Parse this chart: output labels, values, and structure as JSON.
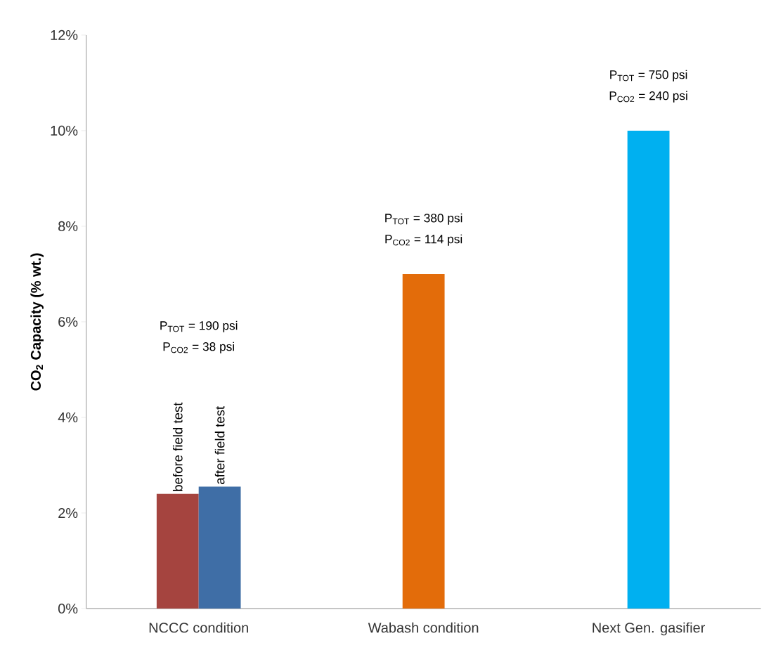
{
  "chart_data": {
    "type": "bar",
    "ylabel": "CO$_{2}$ Capacity (% wt.)",
    "categories": [
      "NCCC condition",
      "Wabash condition",
      "Next Gen. gasifier"
    ],
    "series": [
      {
        "name": "before field test",
        "color": "#a5443f",
        "values": [
          2.4,
          null,
          null
        ]
      },
      {
        "name": "after field test",
        "color": "#3f6ea6",
        "values": [
          2.55,
          null,
          null
        ]
      },
      {
        "color": "#e36c0a",
        "values": [
          null,
          7.0,
          null
        ]
      },
      {
        "color": "#00b0f0",
        "values": [
          null,
          null,
          10.0
        ]
      }
    ],
    "ylim": [
      0,
      12
    ],
    "yticks": [
      {
        "value": 0,
        "label": "0%"
      },
      {
        "value": 2,
        "label": "2%"
      },
      {
        "value": 4,
        "label": "4%"
      },
      {
        "value": 6,
        "label": "6%"
      },
      {
        "value": 8,
        "label": "8%"
      },
      {
        "value": 10,
        "label": "10%"
      },
      {
        "value": 12,
        "label": "12%"
      }
    ],
    "annotations": [
      "P$_{TOT}$ = 190 psi",
      "P$_{CO2}$ = 38 psi",
      "P$_{TOT}$ = 380 psi",
      "P$_{CO2}$ = 114 psi",
      "P$_{TOT}$ = 750 psi",
      "P$_{CO2}$ = 240 psi"
    ],
    "grid": false
  }
}
